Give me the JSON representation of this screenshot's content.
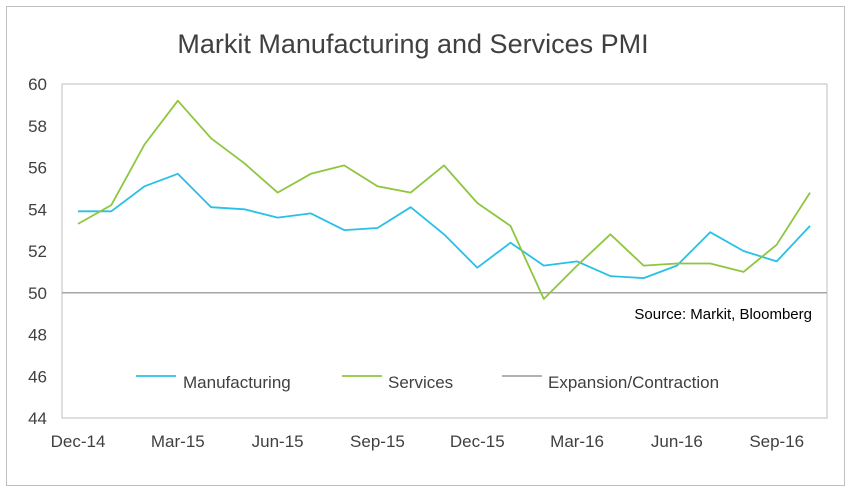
{
  "chart_data": {
    "type": "line",
    "title": "Markit Manufacturing and Services PMI",
    "xlabel": "",
    "ylabel": "",
    "ylim": [
      44,
      60
    ],
    "y_ticks": [
      "44",
      "46",
      "48",
      "50",
      "52",
      "54",
      "56",
      "58",
      "60"
    ],
    "x": [
      "Dec-14",
      "Jan-15",
      "Feb-15",
      "Mar-15",
      "Apr-15",
      "May-15",
      "Jun-15",
      "Jul-15",
      "Aug-15",
      "Sep-15",
      "Oct-15",
      "Nov-15",
      "Dec-15",
      "Jan-16",
      "Feb-16",
      "Mar-16",
      "Apr-16",
      "May-16",
      "Jun-16",
      "Jul-16",
      "Aug-16",
      "Sep-16",
      "Oct-16"
    ],
    "x_tick_labels": [
      "Dec-14",
      "Mar-15",
      "Jun-15",
      "Sep-15",
      "Dec-15",
      "Mar-16",
      "Jun-16",
      "Sep-16"
    ],
    "grid": false,
    "legend_position": "bottom",
    "series": [
      {
        "name": "Manufacturing",
        "color": "#29c0e6",
        "values": [
          53.9,
          53.9,
          55.1,
          55.7,
          54.1,
          54.0,
          53.6,
          53.8,
          53.0,
          53.1,
          54.1,
          52.8,
          51.2,
          52.4,
          51.3,
          51.5,
          50.8,
          50.7,
          51.3,
          52.9,
          52.0,
          51.5,
          53.2
        ]
      },
      {
        "name": "Services",
        "color": "#8ec63f",
        "values": [
          53.3,
          54.2,
          57.1,
          59.2,
          57.4,
          56.2,
          54.8,
          55.7,
          56.1,
          55.1,
          54.8,
          56.1,
          54.3,
          53.2,
          49.7,
          51.3,
          52.8,
          51.3,
          51.4,
          51.4,
          51.0,
          52.3,
          54.8
        ]
      },
      {
        "name": "Expansion/Contraction",
        "color": "#a6a6a6",
        "values": [
          50,
          50,
          50,
          50,
          50,
          50,
          50,
          50,
          50,
          50,
          50,
          50,
          50,
          50,
          50,
          50,
          50,
          50,
          50,
          50,
          50,
          50,
          50
        ]
      }
    ],
    "annotation": "Source: Markit, Bloomberg"
  }
}
